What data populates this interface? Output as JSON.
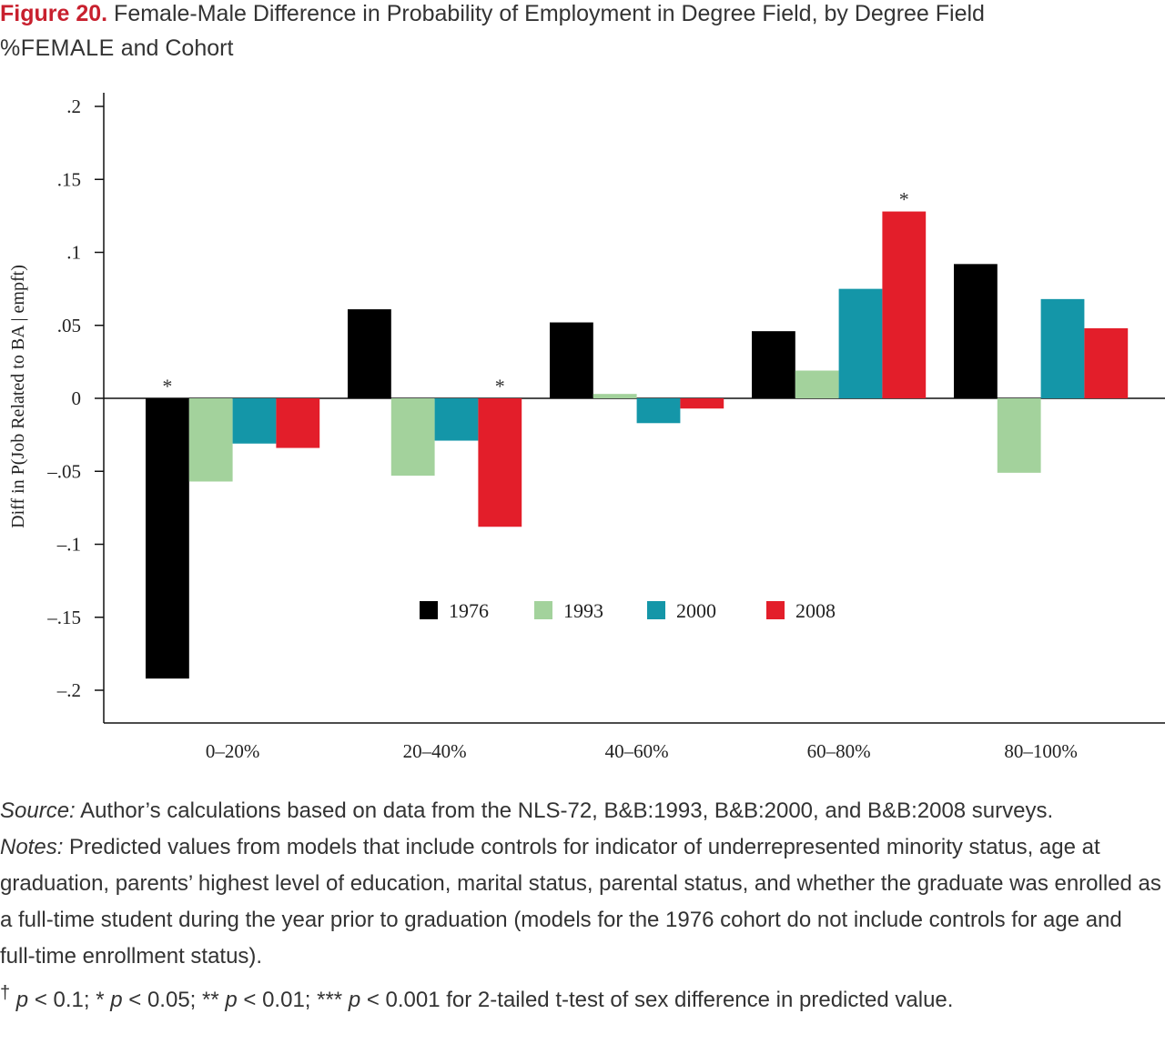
{
  "figure": {
    "label": "Figure 20.",
    "title_part1": "Female-Male Difference in Probability of Employment in Degree Field, by Degree Field",
    "title_smallcaps": "%FEMALE",
    "title_part2": "and Cohort"
  },
  "chart_data": {
    "type": "bar",
    "ylabel": "Diff in P(Job Related to BA | empft)",
    "xlabel": "",
    "categories": [
      "0–20%",
      "20–40%",
      "40–60%",
      "60–80%",
      "80–100%"
    ],
    "ylim": [
      -0.22,
      0.215
    ],
    "yticks": [
      0.2,
      0.15,
      0.1,
      0.05,
      0,
      -0.05,
      -0.1,
      -0.15,
      -0.2
    ],
    "ytick_labels": [
      ".2",
      ".15",
      ".1",
      ".05",
      "0",
      "–.05",
      "–.1",
      "–.15",
      "–.2"
    ],
    "series": [
      {
        "name": "1976",
        "color": "#000000",
        "values": [
          -0.192,
          0.061,
          0.052,
          0.046,
          0.092
        ]
      },
      {
        "name": "1993",
        "color": "#a3d29c",
        "values": [
          -0.057,
          -0.053,
          0.003,
          0.019,
          -0.051
        ]
      },
      {
        "name": "2000",
        "color": "#1496a8",
        "values": [
          -0.031,
          -0.029,
          -0.017,
          0.075,
          0.068
        ]
      },
      {
        "name": "2008",
        "color": "#e31e2a",
        "values": [
          -0.034,
          -0.088,
          -0.007,
          0.128,
          0.048
        ]
      }
    ],
    "significance": [
      {
        "category": "0–20%",
        "series": "1976",
        "mark": "*"
      },
      {
        "category": "20–40%",
        "series": "2008",
        "mark": "*"
      },
      {
        "category": "60–80%",
        "series": "2008",
        "mark": "*"
      }
    ],
    "legend_position": "bottom-center inside plot",
    "grid": false
  },
  "notes": {
    "source_label": "Source:",
    "source_text": "Author’s calculations based on data from the NLS-72, B&B:1993, B&B:2000, and B&B:2008 surveys.",
    "notes_label": "Notes:",
    "notes_text": "Predicted values from models that include controls for indicator of underrepresented minority status, age at graduation, parents’ highest level of education, marital status, parental status, and whether the graduate was enrolled as a full-time student during the year prior to graduation (models for the 1976 cohort do not include controls for age and full-time enrollment status).",
    "sig_dagger": "†",
    "sig_p1": "p",
    "sig_t1": "< 0.1; *",
    "sig_p2": "p",
    "sig_t2": "< 0.05; **",
    "sig_p3": "p",
    "sig_t3": "< 0.01; ***",
    "sig_p4": "p",
    "sig_t4": "< 0.001 for 2-tailed t-test of sex difference in predicted value."
  }
}
